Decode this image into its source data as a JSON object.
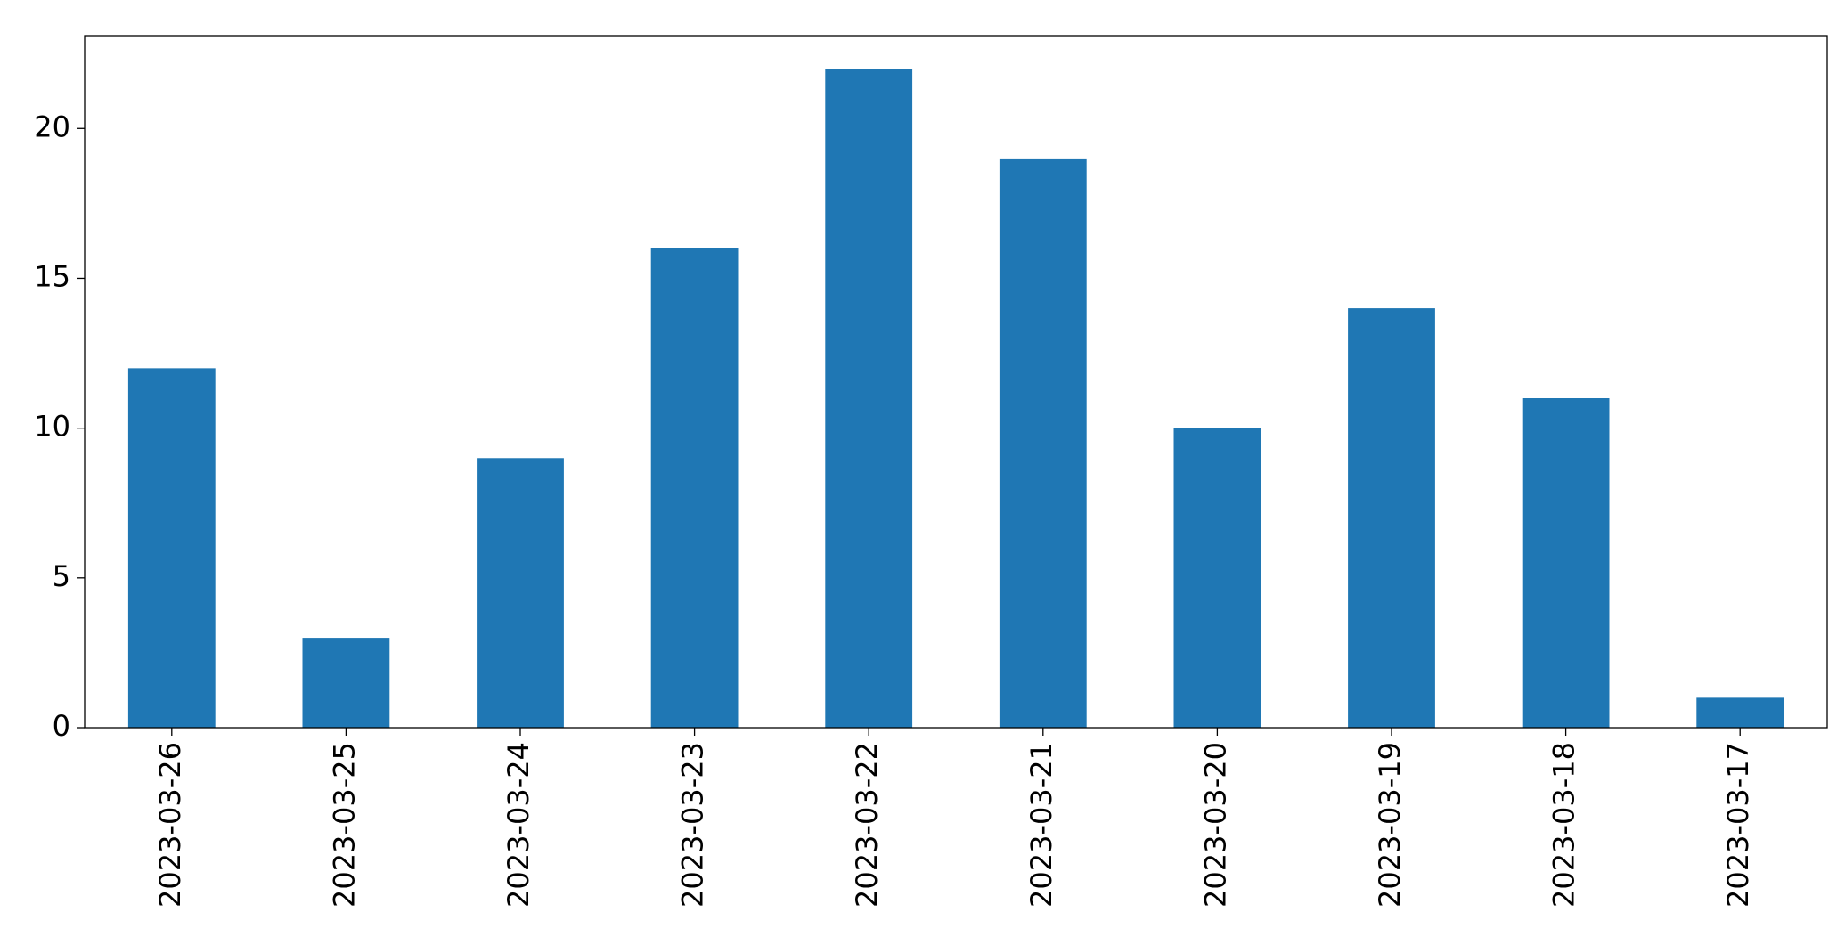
{
  "chart_data": {
    "type": "bar",
    "categories": [
      "2023-03-26",
      "2023-03-25",
      "2023-03-24",
      "2023-03-23",
      "2023-03-22",
      "2023-03-21",
      "2023-03-20",
      "2023-03-19",
      "2023-03-18",
      "2023-03-17"
    ],
    "values": [
      12,
      3,
      9,
      16,
      22,
      19,
      10,
      14,
      11,
      1
    ],
    "color": "#1f77b4",
    "ylim": [
      0,
      23.1
    ],
    "yticks": [
      0,
      5,
      10,
      15,
      20
    ],
    "grid": false
  }
}
